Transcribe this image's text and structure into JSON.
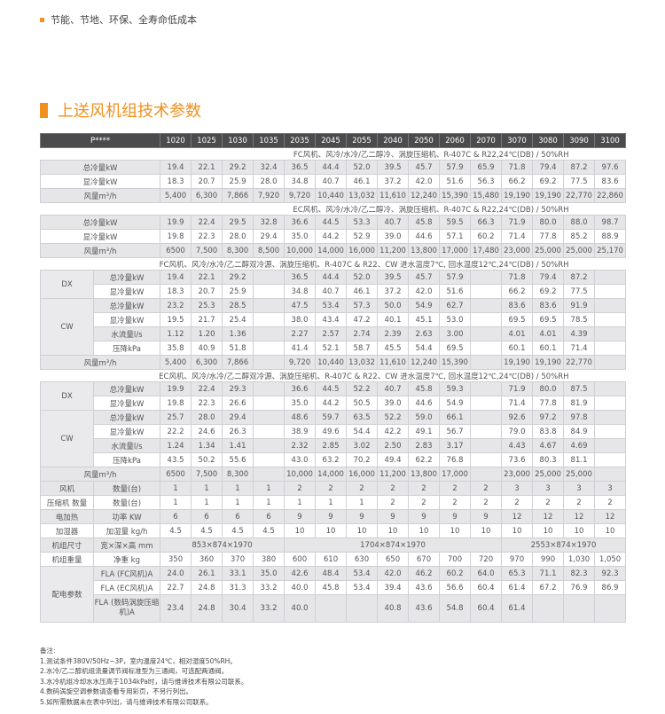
{
  "intro": {
    "bullet": "节能、节地、环保、全寿命低成本"
  },
  "heading": "上送风机组技术参数",
  "table": {
    "header_label": "P****",
    "models": [
      "1020",
      "1025",
      "1030",
      "1035",
      "2035",
      "2045",
      "2055",
      "2040",
      "2050",
      "2060",
      "2070",
      "3070",
      "3080",
      "3090",
      "3100"
    ],
    "sections": [
      {
        "title": "FC风机、风冷/水冷/乙二醇冷、涡旋压缩机、R-407C & R22,24℃(DB) / 50%RH",
        "rows": [
          {
            "label": "总冷量kW",
            "values": [
              "19.4",
              "22.1",
              "29.2",
              "32.4",
              "36.5",
              "44.4",
              "52.0",
              "39.5",
              "45.7",
              "57.9",
              "65.9",
              "71.8",
              "79.4",
              "87.2",
              "97.6"
            ]
          },
          {
            "label": "显冷量kW",
            "values": [
              "18.3",
              "20.7",
              "25.9",
              "28.0",
              "34.8",
              "40.7",
              "46.1",
              "37.2",
              "42.0",
              "51.6",
              "56.3",
              "66.2",
              "69.2",
              "77.5",
              "83.6"
            ]
          },
          {
            "label": "风量m³/h",
            "values": [
              "5,400",
              "6,300",
              "7,866",
              "7,920",
              "9,720",
              "10,440",
              "13,032",
              "11,610",
              "12,240",
              "15,390",
              "15,480",
              "19,190",
              "19,190",
              "22,770",
              "22,860"
            ]
          }
        ]
      },
      {
        "title": "EC风机、风冷/水冷/乙二醇冷、涡旋压缩机、R-407C & R22,24℃(DB) / 50%RH",
        "rows": [
          {
            "label": "总冷量kW",
            "values": [
              "19.9",
              "22.4",
              "29.5",
              "32.8",
              "36.6",
              "44.5",
              "53.3",
              "40.7",
              "45.8",
              "59.5",
              "66.3",
              "71.9",
              "80.0",
              "88.0",
              "98.7"
            ]
          },
          {
            "label": "显冷量kW",
            "values": [
              "19.8",
              "22.3",
              "28.0",
              "29.4",
              "35.0",
              "44.2",
              "52.9",
              "39.0",
              "44.6",
              "57.1",
              "60.2",
              "71.4",
              "77.8",
              "85.2",
              "88.9"
            ]
          },
          {
            "label": "风量m³/h",
            "values": [
              "6500",
              "7,500",
              "8,300",
              "8,500",
              "10,000",
              "14,000",
              "16,000",
              "11,200",
              "13,800",
              "17,000",
              "17,480",
              "23,000",
              "25,000",
              "25,000",
              "25,170"
            ]
          }
        ]
      },
      {
        "title": "FC风机、风冷/水冷/乙二醇双冷源、涡旋压缩机、R-407C & R22、CW 进水温度7℃, 回水温度12℃,24℃(DB) / 50%RH",
        "rows": [
          {
            "group": "DX",
            "rows": [
              {
                "label": "总冷量kW",
                "values": [
                  "19.4",
                  "22.1",
                  "29.2",
                  "",
                  "36.5",
                  "44.4",
                  "52.0",
                  "39.5",
                  "45.7",
                  "57.9",
                  "",
                  "71.8",
                  "79.4",
                  "87.2",
                  ""
                ]
              },
              {
                "label": "显冷量kW",
                "values": [
                  "18.3",
                  "20.7",
                  "25.9",
                  "",
                  "34.8",
                  "40.7",
                  "46.1",
                  "37.2",
                  "42.0",
                  "51.6",
                  "",
                  "66.2",
                  "69.2",
                  "77.5",
                  ""
                ]
              }
            ]
          },
          {
            "group": "CW",
            "rows": [
              {
                "label": "总冷量kW",
                "values": [
                  "23.2",
                  "25.3",
                  "28.5",
                  "",
                  "47.5",
                  "53.4",
                  "57.3",
                  "50.0",
                  "54.9",
                  "62.7",
                  "",
                  "83.6",
                  "83.6",
                  "91.9",
                  ""
                ]
              },
              {
                "label": "显冷量kW",
                "values": [
                  "19.5",
                  "21.7",
                  "25.4",
                  "",
                  "38.0",
                  "43.4",
                  "47.2",
                  "40.1",
                  "45.1",
                  "53.0",
                  "",
                  "69.5",
                  "69.5",
                  "78.5",
                  ""
                ]
              },
              {
                "label": "水流量l/s",
                "values": [
                  "1.12",
                  "1.20",
                  "1.36",
                  "",
                  "2.27",
                  "2.57",
                  "2.74",
                  "2.39",
                  "2.63",
                  "3.00",
                  "",
                  "4.01",
                  "4.01",
                  "4.39",
                  ""
                ]
              },
              {
                "label": "压降kPa",
                "values": [
                  "35.8",
                  "40.9",
                  "51.8",
                  "",
                  "41.4",
                  "52.1",
                  "58.7",
                  "45.5",
                  "54.4",
                  "69.5",
                  "",
                  "60.1",
                  "60.1",
                  "71.4",
                  ""
                ]
              }
            ]
          },
          {
            "label": "风量m³/h",
            "values": [
              "5,400",
              "6,300",
              "7,866",
              "",
              "9,720",
              "10,440",
              "13,032",
              "11,610",
              "12,240",
              "15,390",
              "",
              "19,190",
              "19,190",
              "22,770",
              ""
            ]
          }
        ]
      },
      {
        "title": "EC风机、风冷/水冷/乙二醇双冷源、涡旋压缩机、R-407C & R22、CW 进水温度7℃, 回水温度12℃,24℃(DB) / 50%RH",
        "rows": [
          {
            "group": "DX",
            "rows": [
              {
                "label": "总冷量kW",
                "values": [
                  "19.9",
                  "22.4",
                  "29.3",
                  "",
                  "36.6",
                  "44.5",
                  "52.2",
                  "40.7",
                  "45.8",
                  "59.3",
                  "",
                  "71.9",
                  "80.0",
                  "87.5",
                  ""
                ]
              },
              {
                "label": "显冷量kW",
                "values": [
                  "19.8",
                  "22.3",
                  "26.6",
                  "",
                  "35.0",
                  "44.2",
                  "50.5",
                  "39.0",
                  "44.6",
                  "54.9",
                  "",
                  "71.4",
                  "77.8",
                  "81.9",
                  ""
                ]
              }
            ]
          },
          {
            "group": "CW",
            "rows": [
              {
                "label": "总冷量kW",
                "values": [
                  "25.7",
                  "28.0",
                  "29.4",
                  "",
                  "48.6",
                  "59.7",
                  "63.5",
                  "52.2",
                  "59.0",
                  "66.1",
                  "",
                  "92.6",
                  "97.2",
                  "97.8",
                  ""
                ]
              },
              {
                "label": "显冷量kW",
                "values": [
                  "22.2",
                  "24.6",
                  "26.3",
                  "",
                  "38.9",
                  "49.6",
                  "54.4",
                  "42.2",
                  "49.1",
                  "56.7",
                  "",
                  "79.0",
                  "83.8",
                  "84.9",
                  ""
                ]
              },
              {
                "label": "水流量l/s",
                "values": [
                  "1.24",
                  "1.34",
                  "1.41",
                  "",
                  "2.32",
                  "2.85",
                  "3.02",
                  "2.50",
                  "2.83",
                  "3.17",
                  "",
                  "4.43",
                  "4.67",
                  "4.69",
                  ""
                ]
              },
              {
                "label": "压降kPa",
                "values": [
                  "43.5",
                  "50.2",
                  "55.6",
                  "",
                  "43.0",
                  "63.2",
                  "70.2",
                  "49.4",
                  "62.2",
                  "76.8",
                  "",
                  "73.6",
                  "80.3",
                  "81.1",
                  ""
                ]
              }
            ]
          },
          {
            "label": "风量m³/h",
            "values": [
              "6500",
              "7,500",
              "8,300",
              "",
              "10,000",
              "14,000",
              "16,000",
              "11,200",
              "13,800",
              "17,000",
              "",
              "23,000",
              "25,000",
              "25,000",
              ""
            ]
          }
        ]
      },
      {
        "title": "",
        "rows": [
          {
            "category": "风机",
            "label": "数量(台)",
            "values": [
              "1",
              "1",
              "1",
              "1",
              "2",
              "2",
              "2",
              "2",
              "2",
              "2",
              "2",
              "3",
              "3",
              "3",
              "3"
            ]
          },
          {
            "category": "压缩机 数量",
            "label": "数量(台)",
            "values": [
              "1",
              "1",
              "1",
              "1",
              "1",
              "1",
              "1",
              "2",
              "2",
              "2",
              "2",
              "2",
              "2",
              "2",
              "2"
            ]
          },
          {
            "category": "电加热",
            "label": "功率 KW",
            "values": [
              "6",
              "6",
              "6",
              "6",
              "9",
              "9",
              "9",
              "9",
              "9",
              "9",
              "9",
              "12",
              "12",
              "12",
              "12"
            ]
          },
          {
            "category": "加湿器",
            "label": "加湿量 kg/h",
            "values": [
              "4.5",
              "4.5",
              "4.5",
              "4.5",
              "10",
              "10",
              "10",
              "10",
              "10",
              "10",
              "10",
              "10",
              "10",
              "10",
              "10"
            ]
          },
          {
            "category": "机组尺寸",
            "label": "宽×深×高 mm",
            "spans": [
              {
                "text": "853×874×1970",
                "span": 4
              },
              {
                "text": "1704×874×1970",
                "span": 7
              },
              {
                "text": "2553×874×1970",
                "span": 4
              }
            ]
          },
          {
            "category": "机组重量",
            "label": "净重 kg",
            "values": [
              "350",
              "360",
              "370",
              "380",
              "600",
              "610",
              "630",
              "650",
              "670",
              "700",
              "720",
              "970",
              "990",
              "1,030",
              "1,050"
            ]
          },
          {
            "group": "配电参数",
            "rows": [
              {
                "label": "FLA (FC风机)A",
                "values": [
                  "24.0",
                  "26.1",
                  "33.1",
                  "35.0",
                  "42.6",
                  "48.4",
                  "53.4",
                  "42.0",
                  "46.2",
                  "60.2",
                  "64.0",
                  "65.3",
                  "71.1",
                  "82.3",
                  "92.3"
                ]
              },
              {
                "label": "FLA (EC风机)A",
                "values": [
                  "22.7",
                  "24.8",
                  "31.3",
                  "33.2",
                  "40.0",
                  "45.8",
                  "53.4",
                  "39.4",
                  "43.6",
                  "56.6",
                  "60.4",
                  "61.4",
                  "67.2",
                  "76.9",
                  "86.9"
                ]
              },
              {
                "label": "FLA (数码涡旋压缩机)A",
                "tall": true,
                "values": [
                  "23.4",
                  "24.8",
                  "30.4",
                  "33.2",
                  "40.0",
                  "",
                  "",
                  "40.8",
                  "43.6",
                  "54.8",
                  "60.4",
                  "61.4",
                  "",
                  "",
                  ""
                ]
              }
            ]
          }
        ]
      }
    ]
  },
  "notes": {
    "title": "备注:",
    "items": [
      "1.测试条件380V/50Hz~3P，室内温度24℃，相对湿度50%RH。",
      "2.水冷/乙二醇机组流量调节阀标准型为三通阀，可选配两通阀。",
      "3.水冷机组冷却水水压高于1034kPa时，请与维谛技术有限公司联系。",
      "4.数码涡旋空调参数请查看专用彩页，不另行列出。",
      "5.如所需数据未在表中列出，请与维谛技术有限公司联系。"
    ]
  },
  "colors": {
    "accent": "#f0901e",
    "header_bg": "#4b4b4d",
    "row_shade": "#e6e6e8"
  }
}
